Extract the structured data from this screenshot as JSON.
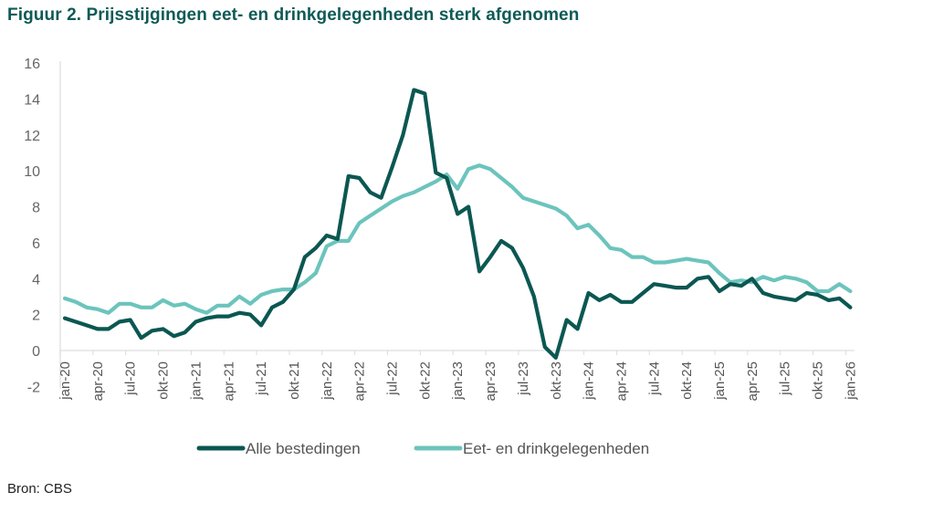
{
  "header": {
    "title": "Figuur 2. Prijsstijgingen eet- en drinkgelegenheden sterk afgenomen"
  },
  "footer": {
    "source": "Bron: CBS"
  },
  "chart_data": {
    "type": "line",
    "title": "Figuur 2. Prijsstijgingen eet- en drinkgelegenheden sterk afgenomen",
    "xlabel": "",
    "ylabel": "",
    "ylim": [
      -2,
      16
    ],
    "yticks": [
      -2,
      0,
      2,
      4,
      6,
      8,
      10,
      12,
      14,
      16
    ],
    "grid": false,
    "legend_position": "bottom",
    "x_tick_labels": [
      "jan-20",
      "apr-20",
      "jul-20",
      "okt-20",
      "jan-21",
      "apr-21",
      "jul-21",
      "okt-21",
      "jan-22",
      "apr-22",
      "jul-22",
      "okt-22",
      "jan-23",
      "apr-23",
      "jul-23",
      "okt-23",
      "jan-24",
      "apr-24",
      "jul-24",
      "okt-24",
      "jan-25",
      "apr-25",
      "jul-25",
      "okt-25",
      "jan-26"
    ],
    "x_start": "jan-20",
    "x_end": "jan-26",
    "x_frequency": "monthly",
    "series": [
      {
        "name": "Alle bestedingen",
        "color": "#0b5752",
        "values": [
          1.8,
          1.6,
          1.4,
          1.2,
          1.2,
          1.6,
          1.7,
          0.7,
          1.1,
          1.2,
          0.8,
          1.0,
          1.6,
          1.8,
          1.9,
          1.9,
          2.1,
          2.0,
          1.4,
          2.4,
          2.7,
          3.4,
          5.2,
          5.7,
          6.4,
          6.2,
          9.7,
          9.6,
          8.8,
          8.5,
          10.2,
          12.0,
          14.5,
          14.3,
          9.9,
          9.6,
          7.6,
          8.0,
          4.4,
          5.2,
          6.1,
          5.7,
          4.6,
          3.0,
          0.2,
          -0.4,
          1.7,
          1.2,
          3.2,
          2.8,
          3.1,
          2.7,
          2.7,
          3.2,
          3.7,
          3.6,
          3.5,
          3.5,
          4.0,
          4.1,
          3.3,
          3.7,
          3.6,
          4.0,
          3.2,
          3.0,
          2.9,
          2.8,
          3.2,
          3.1,
          2.8,
          2.9,
          2.4
        ]
      },
      {
        "name": "Eet- en drinkgelegenheden",
        "color": "#6cc4bd",
        "values": [
          2.9,
          2.7,
          2.4,
          2.3,
          2.1,
          2.6,
          2.6,
          2.4,
          2.4,
          2.8,
          2.5,
          2.6,
          2.3,
          2.1,
          2.5,
          2.5,
          3.0,
          2.6,
          3.1,
          3.3,
          3.4,
          3.4,
          3.8,
          4.3,
          5.8,
          6.1,
          6.1,
          7.1,
          7.5,
          7.9,
          8.3,
          8.6,
          8.8,
          9.1,
          9.4,
          9.8,
          9.0,
          10.1,
          10.3,
          10.1,
          9.6,
          9.1,
          8.5,
          8.3,
          8.1,
          7.9,
          7.5,
          6.8,
          7.0,
          6.4,
          5.7,
          5.6,
          5.2,
          5.2,
          4.9,
          4.9,
          5.0,
          5.1,
          5.0,
          4.9,
          4.3,
          3.8,
          3.9,
          3.8,
          4.1,
          3.9,
          4.1,
          4.0,
          3.8,
          3.3,
          3.3,
          3.7,
          3.3
        ]
      }
    ]
  }
}
